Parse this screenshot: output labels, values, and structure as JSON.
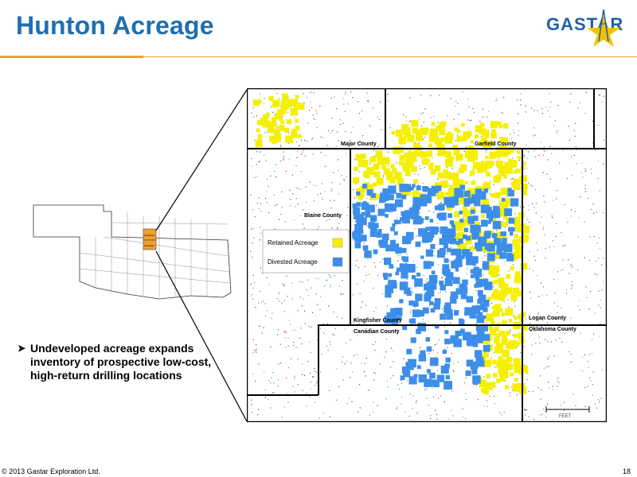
{
  "title": "Hunton Acreage",
  "logo": {
    "text": "GASTAR",
    "icon": "star-derrick-icon",
    "color": "#1f5fa8",
    "star_color": "#f2c200"
  },
  "bullet": {
    "icon": "arrow-bullet-icon",
    "text": "Undeveloped acreage expands inventory of prospective low-cost, high-return drilling locations"
  },
  "legend": {
    "items": [
      {
        "label": "Retained Acreage",
        "color": "#f4f000"
      },
      {
        "label": "Divested Acreage",
        "color": "#3d8ee8"
      }
    ]
  },
  "counties": {
    "major": "Major County",
    "garfield": "Garfield County",
    "blaine": "Blaine County",
    "kingfisher": "Kingfisher County",
    "canadian": "Canadian County",
    "logan": "Logan County",
    "oklahoma": "Oklahoma County"
  },
  "inset": {
    "labels": [
      "Kingfisher",
      "Canadian"
    ]
  },
  "scale": {
    "label": "FEET"
  },
  "footer": "© 2013 Gastar Exploration Ltd.",
  "page_number": "18"
}
